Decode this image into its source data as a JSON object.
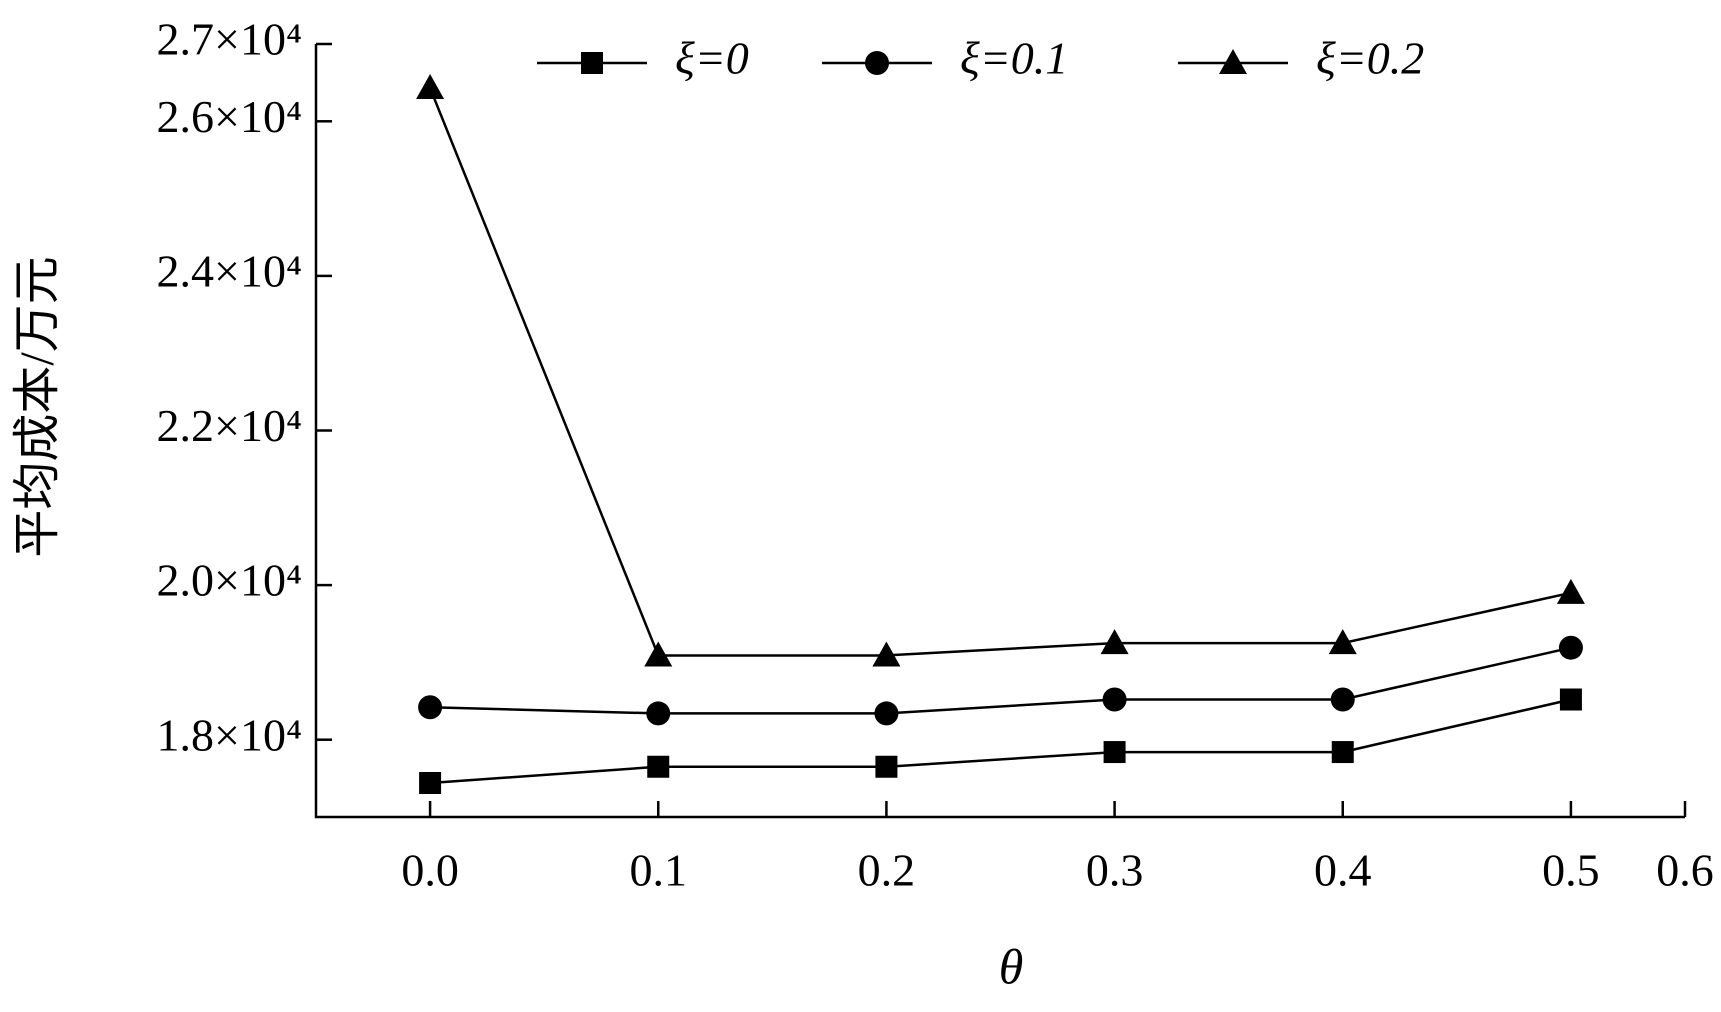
{
  "chart_data": {
    "type": "line",
    "x_label": "θ",
    "y_label": "平均成本/万元",
    "x": [
      0,
      0.1,
      0.2,
      0.3,
      0.4,
      0.5
    ],
    "series": [
      {
        "name": "ξ=0",
        "color": "#000000",
        "marker": "square",
        "values": [
          17440,
          17650,
          17650,
          17840,
          17840,
          18520
        ]
      },
      {
        "name": "ξ=0.1",
        "color": "#000000",
        "marker": "circle",
        "values": [
          18420,
          18340,
          18340,
          18520,
          18520,
          19190
        ]
      },
      {
        "name": "ξ=0.2",
        "color": "#000000",
        "marker": "triangle",
        "values": [
          26430,
          19090,
          19090,
          19250,
          19250,
          19900
        ]
      }
    ],
    "xlim": [
      -0.05,
      0.55
    ],
    "xticks": [
      {
        "value": 0,
        "label": "0.0"
      },
      {
        "value": 0.1,
        "label": "0.1"
      },
      {
        "value": 0.2,
        "label": "0.2"
      },
      {
        "value": 0.3,
        "label": "0.3"
      },
      {
        "value": 0.4,
        "label": "0.4"
      },
      {
        "value": 0.5,
        "label": "0.5"
      },
      {
        "value": 0.55,
        "label": "0.6"
      }
    ],
    "ylim": [
      17000,
      27000
    ],
    "yticks": [
      {
        "value": 18000,
        "label": "1.8×10⁴"
      },
      {
        "value": 20000,
        "label": "2.0×10⁴"
      },
      {
        "value": 22000,
        "label": "2.2×10⁴"
      },
      {
        "value": 24000,
        "label": "2.4×10⁴"
      },
      {
        "value": 26000,
        "label": "2.6×10⁴"
      },
      {
        "value": 27000,
        "label": "2.7×10⁴"
      }
    ],
    "grid": false,
    "legend": "top"
  }
}
